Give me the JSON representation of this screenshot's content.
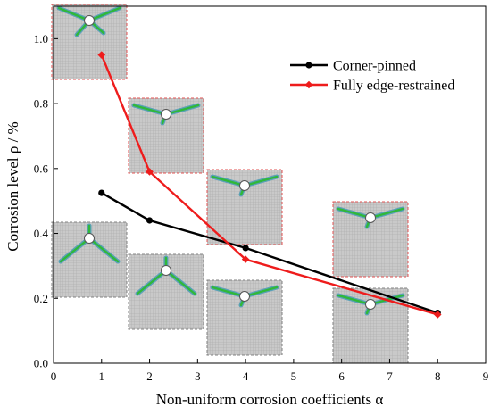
{
  "chart_data": {
    "type": "line",
    "title": "",
    "xlabel": "Non-uniform corrosion coefficients α",
    "ylabel": "Corrosion level ρ / %",
    "xlim": [
      0,
      9
    ],
    "ylim": [
      0,
      1.1
    ],
    "xticks": [
      "0",
      "1",
      "2",
      "3",
      "4",
      "5",
      "6",
      "7",
      "8",
      "9"
    ],
    "yticks": [
      "0.0",
      "0.2",
      "0.4",
      "0.6",
      "0.8",
      "1.0"
    ],
    "grid": false,
    "legend_position": "top-right",
    "series": [
      {
        "name": "Corner-pinned",
        "color": "#000000",
        "marker": "circle",
        "x": [
          1,
          2,
          4,
          8
        ],
        "y": [
          0.525,
          0.44,
          0.355,
          0.155
        ]
      },
      {
        "name": "Fully edge-restrained",
        "color": "#ee1c1c",
        "marker": "diamond",
        "x": [
          1,
          2,
          4,
          8
        ],
        "y": [
          0.95,
          0.59,
          0.32,
          0.15
        ]
      }
    ],
    "insets": [
      {
        "series": "Fully edge-restrained",
        "alpha": 1,
        "border": "#e05050",
        "crack": "x-shape"
      },
      {
        "series": "Fully edge-restrained",
        "alpha": 2,
        "border": "#e05050",
        "crack": "v-shape"
      },
      {
        "series": "Fully edge-restrained",
        "alpha": 4,
        "border": "#e05050",
        "crack": "v-shape"
      },
      {
        "series": "Fully edge-restrained",
        "alpha": 8,
        "border": "#e05050",
        "crack": "v-shape"
      },
      {
        "series": "Corner-pinned",
        "alpha": 1,
        "border": "#808080",
        "crack": "y-shape"
      },
      {
        "series": "Corner-pinned",
        "alpha": 2,
        "border": "#808080",
        "crack": "y-shape"
      },
      {
        "series": "Corner-pinned",
        "alpha": 4,
        "border": "#808080",
        "crack": "v-shape"
      },
      {
        "series": "Corner-pinned",
        "alpha": 8,
        "border": "#808080",
        "crack": "v-shape"
      }
    ]
  }
}
